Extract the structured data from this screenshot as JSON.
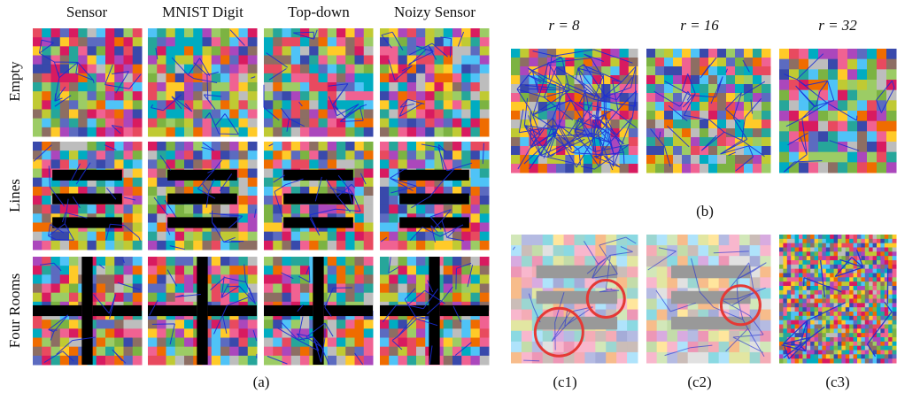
{
  "panel_a": {
    "column_headers": [
      "Sensor",
      "MNIST Digit",
      "Top-down",
      "Noizy Sensor"
    ],
    "row_labels": [
      "Empty",
      "Lines",
      "Four Rooms"
    ],
    "caption": "(a)"
  },
  "panel_b": {
    "radius_labels": [
      "r = 8",
      "r = 16",
      "r = 32"
    ],
    "caption": "(b)"
  },
  "panel_c": {
    "captions": [
      "(c1)",
      "(c2)",
      "(c3)"
    ]
  }
}
